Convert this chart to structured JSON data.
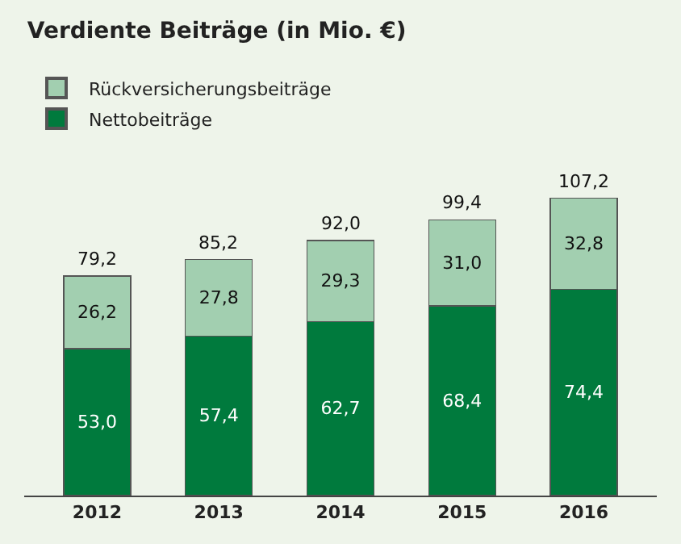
{
  "chart_data": {
    "type": "bar",
    "title": "Verdiente Beiträge (in Mio. €)",
    "stacked": true,
    "legend": "top left",
    "categories": [
      "2012",
      "2013",
      "2014",
      "2015",
      "2016"
    ],
    "series": [
      {
        "name": "Nettobeiträge",
        "color": "#007a3d",
        "values": [
          53.0,
          57.4,
          62.7,
          68.4,
          74.4
        ],
        "value_labels": [
          "53,0",
          "57,4",
          "62,7",
          "68,4",
          "74,4"
        ]
      },
      {
        "name": "Rückversicherungsbeiträge",
        "color": "#a2cfb0",
        "values": [
          26.2,
          27.8,
          29.3,
          31.0,
          32.8
        ],
        "value_labels": [
          "26,2",
          "27,8",
          "29,3",
          "31,0",
          "32,8"
        ]
      }
    ],
    "totals": [
      "79,2",
      "85,2",
      "92,0",
      "99,4",
      "107,2"
    ]
  }
}
